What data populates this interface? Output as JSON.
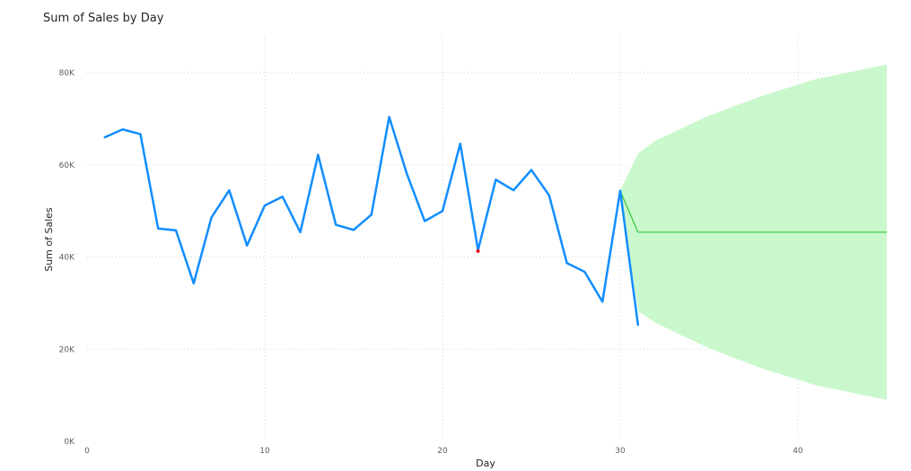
{
  "chart_data": {
    "type": "line",
    "title": "Sum of Sales by Day",
    "xlabel": "Day",
    "ylabel": "Sum of Sales",
    "xlim": [
      0,
      45
    ],
    "ylim": [
      0,
      88000
    ],
    "x_ticks": [
      0,
      10,
      20,
      30,
      40
    ],
    "y_ticks": [
      0,
      20000,
      40000,
      60000,
      80000
    ],
    "x_tick_labels": [
      "0",
      "10",
      "20",
      "30",
      "40"
    ],
    "y_tick_labels": [
      "0K",
      "20K",
      "40K",
      "60K",
      "80K"
    ],
    "grid": true,
    "legend": "none",
    "series": [
      {
        "color": "#118dff",
        "x": [
          1,
          2,
          3,
          4,
          5,
          6,
          7,
          8,
          9,
          10,
          11,
          12,
          13,
          14,
          15,
          16,
          17,
          18,
          19,
          20,
          21,
          22,
          23,
          24,
          25,
          26,
          27,
          28,
          29,
          30,
          31
        ],
        "y": [
          66000,
          67700,
          66700,
          46200,
          45800,
          34300,
          48600,
          54500,
          42500,
          51200,
          53100,
          45400,
          62200,
          47000,
          45900,
          49200,
          70400,
          58000,
          47800,
          50000,
          64600,
          41500,
          56800,
          54500,
          58900,
          53400,
          38700,
          36800,
          30300,
          54400,
          25300
        ]
      }
    ],
    "highlight_point": {
      "x": 22,
      "y": 41500,
      "color": "#e81123"
    },
    "forecast": {
      "line_color": "#33c833",
      "band_color": "#c9f8cd",
      "x": [
        30,
        31,
        32,
        35,
        38,
        41,
        45
      ],
      "value": [
        54400,
        45400,
        45400,
        45400,
        45400,
        45400,
        45400
      ],
      "upper": [
        54400,
        62500,
        65300,
        70700,
        75000,
        78600,
        81800
      ],
      "lower": [
        54400,
        28300,
        25700,
        20200,
        15800,
        12200,
        9000
      ]
    }
  }
}
